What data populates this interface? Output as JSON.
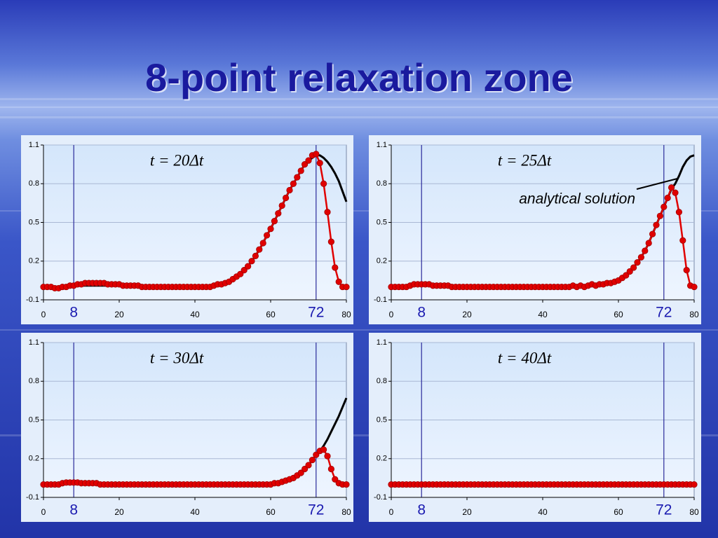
{
  "title": "8-point relaxation zone",
  "chart_data": [
    {
      "type": "line",
      "title": "t = 20Δt",
      "x": [
        0,
        1,
        2,
        3,
        4,
        5,
        6,
        7,
        8,
        9,
        10,
        11,
        12,
        13,
        14,
        15,
        16,
        17,
        18,
        19,
        20,
        21,
        22,
        23,
        24,
        25,
        26,
        27,
        28,
        29,
        30,
        31,
        32,
        33,
        34,
        35,
        36,
        37,
        38,
        39,
        40,
        41,
        42,
        43,
        44,
        45,
        46,
        47,
        48,
        49,
        50,
        51,
        52,
        53,
        54,
        55,
        56,
        57,
        58,
        59,
        60,
        61,
        62,
        63,
        64,
        65,
        66,
        67,
        68,
        69,
        70,
        71,
        72,
        73,
        74,
        75,
        76,
        77,
        78,
        79,
        80
      ],
      "series": [
        {
          "color": "#e00000",
          "markers": true,
          "values": [
            0,
            0,
            0,
            -0.01,
            -0.01,
            0,
            0,
            0.01,
            0.01,
            0.02,
            0.02,
            0.03,
            0.03,
            0.03,
            0.03,
            0.03,
            0.03,
            0.02,
            0.02,
            0.02,
            0.02,
            0.01,
            0.01,
            0.01,
            0.01,
            0.01,
            0,
            0,
            0,
            0,
            0,
            0,
            0,
            0,
            0,
            0,
            0,
            0,
            0,
            0,
            0,
            0,
            0,
            0,
            0,
            0.01,
            0.02,
            0.02,
            0.03,
            0.04,
            0.06,
            0.08,
            0.1,
            0.13,
            0.16,
            0.2,
            0.24,
            0.29,
            0.34,
            0.4,
            0.45,
            0.51,
            0.57,
            0.63,
            0.69,
            0.75,
            0.8,
            0.85,
            0.9,
            0.95,
            0.98,
            1.02,
            1.03,
            0.96,
            0.8,
            0.58,
            0.35,
            0.15,
            0.04,
            0,
            0
          ]
        },
        {
          "color": "#000000",
          "values": [
            0,
            0,
            0,
            0,
            0,
            0,
            0,
            0.01,
            0.01,
            0.01,
            0.01,
            0.01,
            0.01,
            0.01,
            0.01,
            0.01,
            0.01,
            0.01,
            0.01,
            0.01,
            0.01,
            0.01,
            0.01,
            0.01,
            0.01,
            0.01,
            0,
            0,
            0,
            0,
            0,
            0,
            0,
            0,
            0,
            0,
            0,
            0,
            0,
            0,
            0,
            0,
            0,
            0,
            0,
            0.01,
            0.01,
            0.02,
            0.03,
            0.04,
            0.06,
            0.08,
            0.1,
            0.13,
            0.16,
            0.2,
            0.24,
            0.29,
            0.34,
            0.4,
            0.45,
            0.51,
            0.57,
            0.63,
            0.69,
            0.75,
            0.8,
            0.85,
            0.9,
            0.95,
            0.98,
            1.0,
            1.02,
            1.02,
            1.0,
            0.97,
            0.93,
            0.88,
            0.82,
            0.74,
            0.66
          ]
        }
      ],
      "xlim": [
        0,
        80
      ],
      "xticks": [
        0,
        20,
        40,
        60,
        80
      ],
      "ylim": [
        -0.1,
        1.1
      ],
      "yticks": [
        -0.1,
        0.2,
        0.5,
        0.8,
        1.1
      ],
      "grid": true,
      "vlines": [
        8,
        72
      ]
    },
    {
      "type": "line",
      "title": "t = 25Δt",
      "annotation": "analytical solution",
      "x": [
        0,
        1,
        2,
        3,
        4,
        5,
        6,
        7,
        8,
        9,
        10,
        11,
        12,
        13,
        14,
        15,
        16,
        17,
        18,
        19,
        20,
        21,
        22,
        23,
        24,
        25,
        26,
        27,
        28,
        29,
        30,
        31,
        32,
        33,
        34,
        35,
        36,
        37,
        38,
        39,
        40,
        41,
        42,
        43,
        44,
        45,
        46,
        47,
        48,
        49,
        50,
        51,
        52,
        53,
        54,
        55,
        56,
        57,
        58,
        59,
        60,
        61,
        62,
        63,
        64,
        65,
        66,
        67,
        68,
        69,
        70,
        71,
        72,
        73,
        74,
        75,
        76,
        77,
        78,
        79,
        80
      ],
      "series": [
        {
          "color": "#e00000",
          "markers": true,
          "values": [
            0,
            0,
            0,
            0,
            0,
            0.01,
            0.02,
            0.02,
            0.02,
            0.02,
            0.02,
            0.01,
            0.01,
            0.01,
            0.01,
            0.01,
            0,
            0,
            0,
            0,
            0,
            0,
            0,
            0,
            0,
            0,
            0,
            0,
            0,
            0,
            0,
            0,
            0,
            0,
            0,
            0,
            0,
            0,
            0,
            0,
            0,
            0,
            0,
            0,
            0,
            0,
            0,
            0,
            0.01,
            0,
            0.01,
            0,
            0.01,
            0.02,
            0.01,
            0.02,
            0.02,
            0.03,
            0.03,
            0.04,
            0.05,
            0.07,
            0.09,
            0.12,
            0.15,
            0.19,
            0.23,
            0.28,
            0.34,
            0.41,
            0.48,
            0.55,
            0.62,
            0.69,
            0.77,
            0.73,
            0.58,
            0.36,
            0.13,
            0.01,
            0
          ]
        },
        {
          "color": "#000000",
          "values": [
            0,
            0,
            0,
            0,
            0,
            0,
            0.01,
            0.01,
            0.01,
            0.01,
            0.01,
            0.01,
            0.01,
            0.01,
            0,
            0,
            0,
            0,
            0,
            0,
            0,
            0,
            0,
            0,
            0,
            0,
            0,
            0,
            0,
            0,
            0,
            0,
            0,
            0,
            0,
            0,
            0,
            0,
            0,
            0,
            0,
            0,
            0,
            0,
            0,
            0,
            0,
            0,
            0,
            0,
            0,
            0,
            0.01,
            0.01,
            0.01,
            0.02,
            0.02,
            0.03,
            0.03,
            0.04,
            0.05,
            0.07,
            0.09,
            0.12,
            0.15,
            0.19,
            0.23,
            0.28,
            0.34,
            0.41,
            0.48,
            0.55,
            0.62,
            0.69,
            0.76,
            0.8,
            0.86,
            0.93,
            0.98,
            1.01,
            1.02
          ]
        }
      ],
      "xlim": [
        0,
        80
      ],
      "xticks": [
        0,
        20,
        40,
        60,
        80
      ],
      "ylim": [
        -0.1,
        1.1
      ],
      "yticks": [
        -0.1,
        0.2,
        0.5,
        0.8,
        1.1
      ],
      "grid": true,
      "vlines": [
        8,
        72
      ]
    },
    {
      "type": "line",
      "title": "t = 30Δt",
      "x": [
        0,
        1,
        2,
        3,
        4,
        5,
        6,
        7,
        8,
        9,
        10,
        11,
        12,
        13,
        14,
        15,
        16,
        17,
        18,
        19,
        20,
        21,
        22,
        23,
        24,
        25,
        26,
        27,
        28,
        29,
        30,
        31,
        32,
        33,
        34,
        35,
        36,
        37,
        38,
        39,
        40,
        41,
        42,
        43,
        44,
        45,
        46,
        47,
        48,
        49,
        50,
        51,
        52,
        53,
        54,
        55,
        56,
        57,
        58,
        59,
        60,
        61,
        62,
        63,
        64,
        65,
        66,
        67,
        68,
        69,
        70,
        71,
        72,
        73,
        74,
        75,
        76,
        77,
        78,
        79,
        80
      ],
      "series": [
        {
          "color": "#e00000",
          "markers": true,
          "values": [
            0,
            0,
            0,
            0,
            0,
            0.01,
            0.015,
            0.015,
            0.015,
            0.015,
            0.01,
            0.01,
            0.01,
            0.01,
            0.01,
            0,
            0,
            0,
            0,
            0,
            0,
            0,
            0,
            0,
            0,
            0,
            0,
            0,
            0,
            0,
            0,
            0,
            0,
            0,
            0,
            0,
            0,
            0,
            0,
            0,
            0,
            0,
            0,
            0,
            0,
            0,
            0,
            0,
            0,
            0,
            0,
            0,
            0,
            0,
            0,
            0,
            0,
            0,
            0,
            0,
            0,
            0.01,
            0.01,
            0.02,
            0.03,
            0.04,
            0.05,
            0.07,
            0.09,
            0.12,
            0.15,
            0.19,
            0.23,
            0.26,
            0.27,
            0.22,
            0.12,
            0.04,
            0.01,
            0,
            0
          ]
        },
        {
          "color": "#000000",
          "values": [
            0,
            0,
            0,
            0,
            0,
            0.01,
            0.01,
            0.01,
            0.01,
            0.01,
            0.01,
            0.01,
            0.01,
            0.01,
            0.01,
            0,
            0,
            0,
            0,
            0,
            0,
            0,
            0,
            0,
            0,
            0,
            0,
            0,
            0,
            0,
            0,
            0,
            0,
            0,
            0,
            0,
            0,
            0,
            0,
            0,
            0,
            0,
            0,
            0,
            0,
            0,
            0,
            0,
            0,
            0,
            0,
            0,
            0,
            0,
            0,
            0,
            0,
            0,
            0,
            0,
            0,
            0.01,
            0.01,
            0.02,
            0.03,
            0.04,
            0.05,
            0.07,
            0.09,
            0.12,
            0.15,
            0.19,
            0.23,
            0.26,
            0.3,
            0.35,
            0.41,
            0.47,
            0.53,
            0.6,
            0.67
          ]
        }
      ],
      "xlim": [
        0,
        80
      ],
      "xticks": [
        0,
        20,
        40,
        60,
        80
      ],
      "ylim": [
        -0.1,
        1.1
      ],
      "yticks": [
        -0.1,
        0.2,
        0.5,
        0.8,
        1.1
      ],
      "grid": true,
      "vlines": [
        8,
        72
      ]
    },
    {
      "type": "line",
      "title": "t = 40Δt",
      "x": [
        0,
        1,
        2,
        3,
        4,
        5,
        6,
        7,
        8,
        9,
        10,
        11,
        12,
        13,
        14,
        15,
        16,
        17,
        18,
        19,
        20,
        21,
        22,
        23,
        24,
        25,
        26,
        27,
        28,
        29,
        30,
        31,
        32,
        33,
        34,
        35,
        36,
        37,
        38,
        39,
        40,
        41,
        42,
        43,
        44,
        45,
        46,
        47,
        48,
        49,
        50,
        51,
        52,
        53,
        54,
        55,
        56,
        57,
        58,
        59,
        60,
        61,
        62,
        63,
        64,
        65,
        66,
        67,
        68,
        69,
        70,
        71,
        72,
        73,
        74,
        75,
        76,
        77,
        78,
        79,
        80
      ],
      "series": [
        {
          "color": "#e00000",
          "markers": true,
          "values": [
            0,
            0,
            0,
            0,
            0,
            0,
            0,
            0,
            0,
            0,
            0,
            0,
            0,
            0,
            0,
            0,
            0,
            0,
            0,
            0,
            0,
            0,
            0,
            0,
            0,
            0,
            0,
            0,
            0,
            0,
            0,
            0,
            0,
            0,
            0,
            0,
            0,
            0,
            0,
            0,
            0,
            0,
            0,
            0,
            0,
            0,
            0,
            0,
            0,
            0,
            0,
            0,
            0,
            0,
            0,
            0,
            0,
            0,
            0,
            0,
            0,
            0,
            0,
            0,
            0,
            0,
            0,
            0,
            0,
            0,
            0,
            0,
            0,
            0,
            0,
            0,
            0,
            0,
            0,
            0,
            0
          ]
        },
        {
          "color": "#000000",
          "values": [
            0,
            0,
            0,
            0,
            0,
            0,
            0,
            0,
            0,
            0,
            0,
            0,
            0,
            0,
            0,
            0,
            0,
            0,
            0,
            0,
            0,
            0,
            0,
            0,
            0,
            0,
            0,
            0,
            0,
            0,
            0,
            0,
            0,
            0,
            0,
            0,
            0,
            0,
            0,
            0,
            0,
            0,
            0,
            0,
            0,
            0,
            0,
            0,
            0,
            0,
            0,
            0,
            0,
            0,
            0,
            0,
            0,
            0,
            0,
            0,
            0,
            0,
            0,
            0,
            0,
            0,
            0,
            0,
            0,
            0,
            0,
            0,
            0,
            0,
            0,
            0,
            0,
            0,
            0,
            0,
            0
          ]
        }
      ],
      "xlim": [
        0,
        80
      ],
      "xticks": [
        0,
        20,
        40,
        60,
        80
      ],
      "ylim": [
        -0.1,
        1.1
      ],
      "yticks": [
        -0.1,
        0.2,
        0.5,
        0.8,
        1.1
      ],
      "grid": true,
      "vlines": [
        8,
        72
      ]
    }
  ]
}
